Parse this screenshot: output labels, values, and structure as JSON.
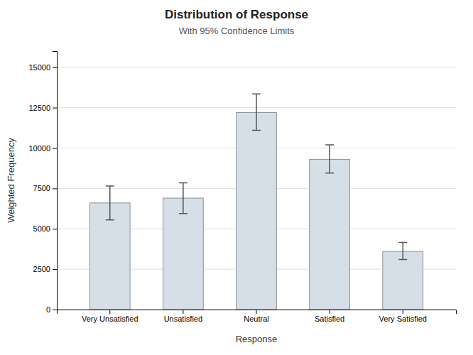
{
  "chart_data": {
    "type": "bar",
    "title": "Distribution of Response",
    "subtitle": "With 95% Confidence Limits",
    "xlabel": "Response",
    "ylabel": "Weighted Frequency",
    "categories": [
      "Very Unsatisfied",
      "Unsatisfied",
      "Neutral",
      "Satisfied",
      "Very Satisfied"
    ],
    "values": [
      6600,
      6900,
      12200,
      9300,
      3600
    ],
    "error_lower": [
      1050,
      950,
      1100,
      850,
      500
    ],
    "error_upper": [
      1050,
      950,
      1150,
      900,
      550
    ],
    "color": "#d6dfe8",
    "ylim": [
      0,
      16000
    ],
    "yticks": [
      0,
      2500,
      5000,
      7500,
      10000,
      12500,
      15000
    ],
    "grid": true
  }
}
